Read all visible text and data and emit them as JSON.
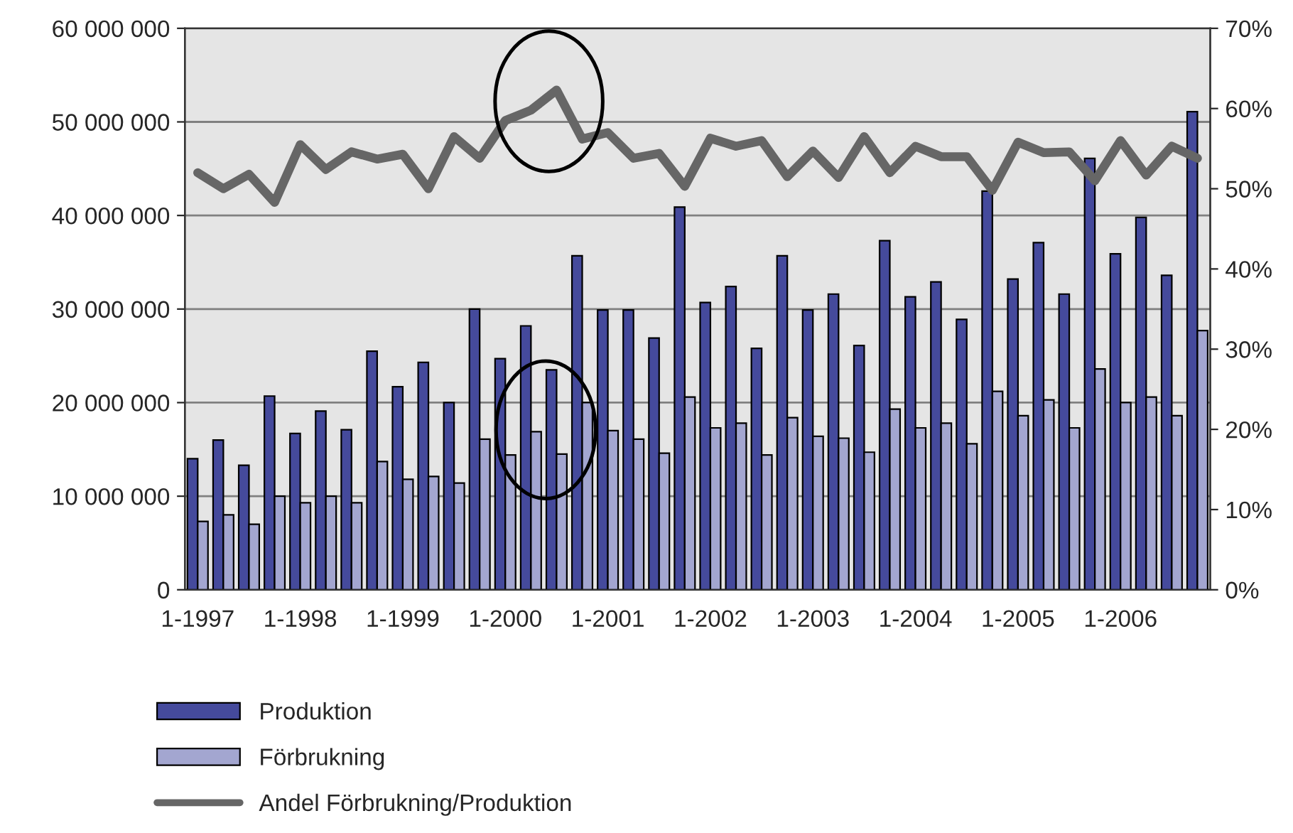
{
  "chart_data": {
    "type": "bar",
    "categories": [
      "1-1997",
      null,
      null,
      null,
      "1-1998",
      null,
      null,
      null,
      "1-1999",
      null,
      null,
      null,
      "1-2000",
      null,
      null,
      null,
      "1-2001",
      null,
      null,
      null,
      "1-2002",
      null,
      null,
      null,
      "1-2003",
      null,
      null,
      null,
      "1-2004",
      null,
      null,
      null,
      "1-2005",
      null,
      null,
      null,
      "1-2006",
      null,
      null,
      null
    ],
    "series": [
      {
        "name": "Produktion",
        "color": "#454a9c",
        "values": [
          14000000,
          16000000,
          13300000,
          20700000,
          16700000,
          19100000,
          17100000,
          25500000,
          21700000,
          24300000,
          20000000,
          30000000,
          24700000,
          28200000,
          23500000,
          35700000,
          29900000,
          29900000,
          26900000,
          40900000,
          30700000,
          32400000,
          25800000,
          35700000,
          29900000,
          31600000,
          26100000,
          37300000,
          31300000,
          32900000,
          28900000,
          42600000,
          33200000,
          37100000,
          31600000,
          46100000,
          35900000,
          39800000,
          33600000,
          51100000
        ]
      },
      {
        "name": "Förbrukning",
        "color": "#a3a6d0",
        "values": [
          7300000,
          8000000,
          7000000,
          10000000,
          9300000,
          10000000,
          9300000,
          13700000,
          11800000,
          12100000,
          11400000,
          16100000,
          14400000,
          16900000,
          14500000,
          20000000,
          17000000,
          16100000,
          14600000,
          20600000,
          17300000,
          17800000,
          14400000,
          18400000,
          16400000,
          16200000,
          14700000,
          19300000,
          17300000,
          17800000,
          15600000,
          21200000,
          18600000,
          20300000,
          17300000,
          23600000,
          20000000,
          20600000,
          18600000,
          27700000
        ]
      },
      {
        "name": "Andel Förbrukning/Produktion",
        "type": "line",
        "axis": "y2",
        "color": "#666666",
        "values": [
          52,
          50,
          51.8,
          48.3,
          55.5,
          52.4,
          54.6,
          53.7,
          54.3,
          50,
          56.5,
          53.8,
          58.5,
          59.8,
          62.3,
          56.2,
          57,
          53.8,
          54.4,
          50.3,
          56.3,
          55.3,
          56,
          51.5,
          54.7,
          51.4,
          56.5,
          52,
          55.3,
          54,
          54,
          49.8,
          55.8,
          54.5,
          54.6,
          51,
          56,
          51.7,
          55.3,
          53.8
        ]
      }
    ],
    "ylim": [
      0,
      60000000
    ],
    "yticks": [
      0,
      {
        "value": 10000000,
        "label": "10 000 000"
      },
      {
        "value": 20000000,
        "label": "20 000 000"
      },
      {
        "value": 30000000,
        "label": "30 000 000"
      },
      {
        "value": 40000000,
        "label": "40 000 000"
      },
      {
        "value": 50000000,
        "label": "50 000 000"
      },
      {
        "value": 60000000,
        "label": "60 000 000"
      }
    ],
    "y2lim": [
      0,
      70
    ],
    "y2ticks": [
      {
        "value": 0,
        "label": "0%"
      },
      {
        "value": 10,
        "label": "10%"
      },
      {
        "value": 20,
        "label": "20%"
      },
      {
        "value": 30,
        "label": "30%"
      },
      {
        "value": 40,
        "label": "40%"
      },
      {
        "value": 50,
        "label": "50%"
      },
      {
        "value": 60,
        "label": "60%"
      },
      {
        "value": 70,
        "label": "70%"
      }
    ],
    "grid": "y",
    "legend": "bottom left",
    "marker": "none",
    "line_style": "solid"
  }
}
